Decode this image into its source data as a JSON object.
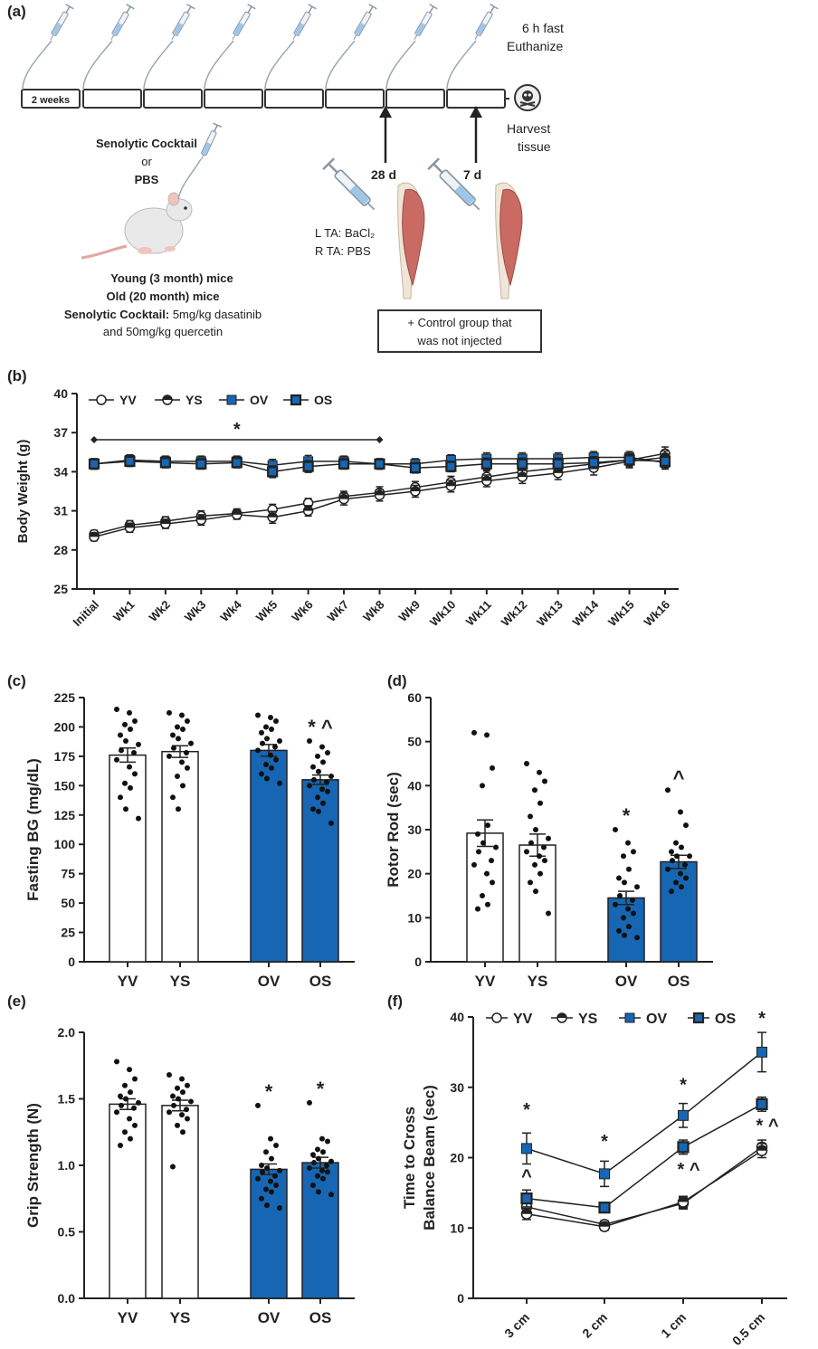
{
  "colors": {
    "blue": "#1666b3",
    "dark": "#222222",
    "black": "#000000",
    "white": "#ffffff"
  },
  "panels": {
    "a": {
      "label": "(a)",
      "timeline_first": "2 weeks",
      "fast": "6 h fast",
      "euthanize": "Euthanize",
      "harvest1": "Harvest",
      "harvest2": "tissue",
      "mark_28d": "28 d",
      "mark_7d": "7 d",
      "cocktail_or_1": "Senolytic Cocktail",
      "cocktail_or_2": "or",
      "cocktail_or_3": "PBS",
      "lta": "L TA: BaCl₂",
      "rta": "R TA: PBS",
      "young": "Young (3 month) mice",
      "old": "Old (20 month) mice",
      "cocktail_label": "Senolytic Cocktail:",
      "cocktail_dose": " 5mg/kg dasatinib",
      "cocktail_dose2": "and 50mg/kg quercetin",
      "control_box1": "+ Control group that",
      "control_box2": "was not injected",
      "icons": [
        "syringe-icon",
        "mouse-icon",
        "skull-icon",
        "muscle-icon"
      ]
    },
    "b": {
      "label": "(b)"
    },
    "c": {
      "label": "(c)"
    },
    "d": {
      "label": "(d)"
    },
    "e": {
      "label": "(e)"
    },
    "f": {
      "label": "(f)"
    }
  },
  "chart_data": [
    {
      "id": "b",
      "type": "line",
      "ylabel": "Body Weight (g)",
      "ylim": [
        25,
        40
      ],
      "yticks": [
        25,
        28,
        31,
        34,
        37,
        40
      ],
      "categories": [
        "Initial",
        "Wk1",
        "Wk2",
        "Wk3",
        "Wk4",
        "Wk5",
        "Wk6",
        "Wk7",
        "Wk8",
        "Wk9",
        "Wk10",
        "Wk11",
        "Wk12",
        "Wk13",
        "Wk14",
        "Wk15",
        "Wk16"
      ],
      "legend": [
        "YV",
        "YS",
        "OV",
        "OS"
      ],
      "annotation": "*",
      "annotation_range": [
        "Initial",
        "Wk8"
      ],
      "series": [
        {
          "name": "YV",
          "marker": "open-circle",
          "values": [
            29.2,
            29.9,
            30.2,
            30.6,
            30.8,
            31.1,
            31.6,
            32.1,
            32.4,
            32.8,
            33.2,
            33.6,
            34.0,
            34.3,
            34.6,
            34.9,
            35.4
          ],
          "err": [
            0.3,
            0.35,
            0.35,
            0.4,
            0.35,
            0.4,
            0.35,
            0.4,
            0.45,
            0.45,
            0.45,
            0.45,
            0.5,
            0.5,
            0.5,
            0.5,
            0.5
          ]
        },
        {
          "name": "YS",
          "marker": "half-circle",
          "values": [
            29.0,
            29.7,
            30.0,
            30.3,
            30.7,
            30.5,
            31.0,
            31.9,
            32.2,
            32.5,
            32.9,
            33.3,
            33.6,
            33.9,
            34.3,
            34.8,
            35.1
          ],
          "err": [
            0.3,
            0.35,
            0.35,
            0.4,
            0.35,
            0.45,
            0.4,
            0.45,
            0.45,
            0.45,
            0.45,
            0.45,
            0.5,
            0.5,
            0.55,
            0.5,
            0.5
          ]
        },
        {
          "name": "OV",
          "marker": "blue-square",
          "values": [
            34.6,
            34.9,
            34.8,
            34.8,
            34.8,
            34.5,
            34.8,
            34.8,
            34.6,
            34.6,
            34.9,
            35.0,
            35.0,
            35.0,
            35.1,
            35.1,
            34.7
          ],
          "err": [
            0.4,
            0.4,
            0.4,
            0.4,
            0.4,
            0.45,
            0.45,
            0.4,
            0.4,
            0.4,
            0.4,
            0.45,
            0.45,
            0.45,
            0.45,
            0.45,
            0.5
          ]
        },
        {
          "name": "OS",
          "marker": "dark-square",
          "values": [
            34.6,
            34.8,
            34.7,
            34.6,
            34.7,
            34.0,
            34.4,
            34.6,
            34.6,
            34.3,
            34.4,
            34.6,
            34.6,
            34.6,
            34.7,
            34.9,
            34.8
          ],
          "err": [
            0.4,
            0.4,
            0.4,
            0.4,
            0.4,
            0.45,
            0.45,
            0.4,
            0.4,
            0.4,
            0.4,
            0.45,
            0.45,
            0.45,
            0.45,
            0.45,
            0.5
          ]
        }
      ]
    },
    {
      "id": "c",
      "type": "bar",
      "ylabel": "Fasting BG (mg/dL)",
      "ylim": [
        0,
        225
      ],
      "yticks": [
        0,
        25,
        50,
        75,
        100,
        125,
        150,
        175,
        200,
        225
      ],
      "categories": [
        "YV",
        "YS",
        "OV",
        "OS"
      ],
      "values": [
        176,
        179,
        180,
        155
      ],
      "err": [
        6,
        5,
        5,
        4
      ],
      "annotations": [
        "",
        "",
        "",
        "* ^"
      ],
      "points": [
        [
          215,
          212,
          205,
          202,
          198,
          193,
          188,
          185,
          180,
          178,
          172,
          166,
          160,
          152,
          148,
          140,
          130,
          122
        ],
        [
          212,
          210,
          205,
          200,
          198,
          193,
          190,
          186,
          182,
          178,
          175,
          170,
          165,
          158,
          150,
          140,
          130
        ],
        [
          210,
          208,
          205,
          200,
          198,
          195,
          190,
          188,
          186,
          183,
          180,
          176,
          172,
          168,
          165,
          160,
          156,
          152
        ],
        [
          188,
          183,
          178,
          175,
          170,
          166,
          162,
          158,
          155,
          153,
          150,
          147,
          145,
          140,
          135,
          130,
          128,
          118
        ]
      ]
    },
    {
      "id": "d",
      "type": "bar",
      "ylabel": "Rotor Rod (sec)",
      "ylim": [
        0,
        60
      ],
      "yticks": [
        0,
        10,
        20,
        30,
        40,
        50,
        60
      ],
      "categories": [
        "YV",
        "YS",
        "OV",
        "OS"
      ],
      "values": [
        29.2,
        26.5,
        14.5,
        22.7
      ],
      "err": [
        3.0,
        2.5,
        1.5,
        1.5
      ],
      "annotations": [
        "",
        "",
        "*",
        "^"
      ],
      "points": [
        [
          52,
          51.5,
          44,
          40,
          31,
          29,
          27,
          26,
          25,
          23,
          22,
          20,
          18,
          15,
          13,
          12
        ],
        [
          45,
          43,
          41,
          39,
          36,
          33,
          30,
          28,
          27,
          26,
          25,
          24,
          23,
          22,
          20,
          18,
          16,
          11
        ],
        [
          30,
          27,
          25,
          24,
          21,
          19,
          18,
          17,
          15,
          14,
          13,
          12,
          11,
          10,
          8,
          7,
          6,
          5.5
        ],
        [
          39,
          34,
          31,
          27,
          26,
          25,
          24,
          24,
          23,
          22,
          21,
          20,
          19,
          18,
          17,
          16
        ]
      ]
    },
    {
      "id": "e",
      "type": "bar",
      "ylabel": "Grip Strength (N)",
      "ylim": [
        0,
        2.0
      ],
      "yticks": [
        0.0,
        0.5,
        1.0,
        1.5,
        2.0
      ],
      "categories": [
        "YV",
        "YS",
        "OV",
        "OS"
      ],
      "values": [
        1.46,
        1.45,
        0.97,
        1.02
      ],
      "err": [
        0.04,
        0.04,
        0.04,
        0.04
      ],
      "annotations": [
        "",
        "",
        "*",
        "*"
      ],
      "points": [
        [
          1.78,
          1.72,
          1.65,
          1.6,
          1.55,
          1.52,
          1.5,
          1.47,
          1.45,
          1.43,
          1.4,
          1.35,
          1.3,
          1.25,
          1.2,
          1.15
        ],
        [
          1.68,
          1.65,
          1.6,
          1.58,
          1.55,
          1.52,
          1.5,
          1.48,
          1.45,
          1.42,
          1.4,
          1.38,
          1.35,
          1.3,
          1.25,
          0.99
        ],
        [
          1.45,
          1.2,
          1.15,
          1.1,
          1.05,
          1.0,
          0.98,
          0.96,
          0.95,
          0.92,
          0.9,
          0.88,
          0.85,
          0.82,
          0.8,
          0.75,
          0.7,
          0.68
        ],
        [
          1.47,
          1.2,
          1.18,
          1.12,
          1.1,
          1.08,
          1.05,
          1.03,
          1.02,
          1.0,
          0.98,
          0.96,
          0.95,
          0.92,
          0.9,
          0.85,
          0.8,
          0.78
        ]
      ]
    },
    {
      "id": "f",
      "type": "line",
      "ylabel_1": "Time to Cross",
      "ylabel_2": "Balance Beam (sec)",
      "ylim": [
        0,
        40
      ],
      "yticks": [
        0,
        10,
        20,
        30,
        40
      ],
      "categories": [
        "3 cm",
        "2 cm",
        "1 cm",
        "0.5 cm"
      ],
      "legend": [
        "YV",
        "YS",
        "OV",
        "OS"
      ],
      "series": [
        {
          "name": "YV",
          "marker": "open-circle",
          "values": [
            13.0,
            10.5,
            13.5,
            21.5
          ],
          "err": [
            0.8,
            0.5,
            0.8,
            1.0
          ]
        },
        {
          "name": "YS",
          "marker": "half-circle",
          "values": [
            12.0,
            10.2,
            13.7,
            21.0
          ],
          "err": [
            0.8,
            0.5,
            0.8,
            1.0
          ]
        },
        {
          "name": "OV",
          "marker": "blue-square",
          "values": [
            21.3,
            17.7,
            26.0,
            35.0
          ],
          "err": [
            2.2,
            1.8,
            1.7,
            2.8
          ]
        },
        {
          "name": "OS",
          "marker": "dark-square",
          "values": [
            14.2,
            12.9,
            21.5,
            27.6
          ],
          "err": [
            1.2,
            0.6,
            1.0,
            1.0
          ]
        }
      ],
      "annotations": [
        {
          "cat": 0,
          "y": 26.0,
          "text": "*"
        },
        {
          "cat": 0,
          "y": 16.5,
          "text": "^"
        },
        {
          "cat": 1,
          "y": 21.5,
          "text": "*"
        },
        {
          "cat": 2,
          "y": 29.5,
          "text": "*"
        },
        {
          "cat": 2,
          "y": 17.5,
          "text": "* ^"
        },
        {
          "cat": 3,
          "y": 39.0,
          "text": "*"
        },
        {
          "cat": 3,
          "y": 23.7,
          "text": "* ^"
        }
      ]
    }
  ]
}
